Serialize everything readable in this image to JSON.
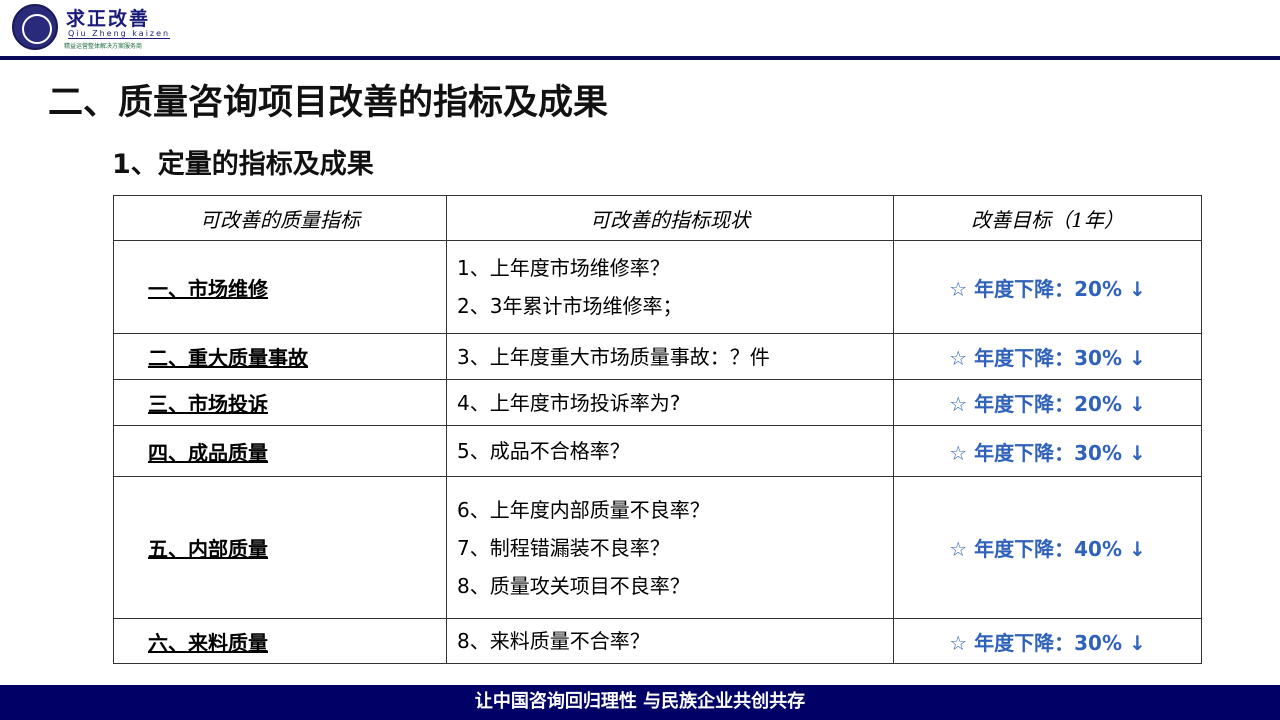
{
  "logo": {
    "name_cn": "求正改善",
    "name_en": "Qiu Zheng kaizen",
    "tagline": "精益运营整体解决方案服务商"
  },
  "title": "二、质量咨询项目改善的指标及成果",
  "subtitle": "1、定量的指标及成果",
  "table": {
    "headers": [
      "可改善的质量指标",
      "可改善的指标现状",
      "改善目标（1年）"
    ],
    "rows": [
      {
        "indicator": "一、市场维修",
        "status": [
          "1、上年度市场维修率？",
          "2、3年累计市场维修率；"
        ],
        "target": "☆ 年度下降：20% ↓"
      },
      {
        "indicator": "二、重大质量事故",
        "status": [
          "3、上年度重大市场质量事故：？件"
        ],
        "target": "☆  年度下降：30% ↓"
      },
      {
        "indicator": "三、市场投诉",
        "status": [
          "4、上年度市场投诉率为?"
        ],
        "target": "☆ 年度下降：20% ↓"
      },
      {
        "indicator": "四、成品质量",
        "status": [
          "5、成品不合格率？"
        ],
        "target": "☆  年度下降：30% ↓"
      },
      {
        "indicator": "五、内部质量",
        "status": [
          "6、上年度内部质量不良率？",
          "7、制程错漏装不良率？",
          "8、质量攻关项目不良率？"
        ],
        "target": "☆ 年度下降：40% ↓"
      },
      {
        "indicator": "六、来料质量",
        "status": [
          "8、来料质量不合率？"
        ],
        "target": "☆ 年度下降：30% ↓"
      }
    ]
  },
  "footer": "让中国咨询回归理性  与民族企业共创共存",
  "colors": {
    "navy": "#000066",
    "target_blue": "#2f62b8"
  }
}
